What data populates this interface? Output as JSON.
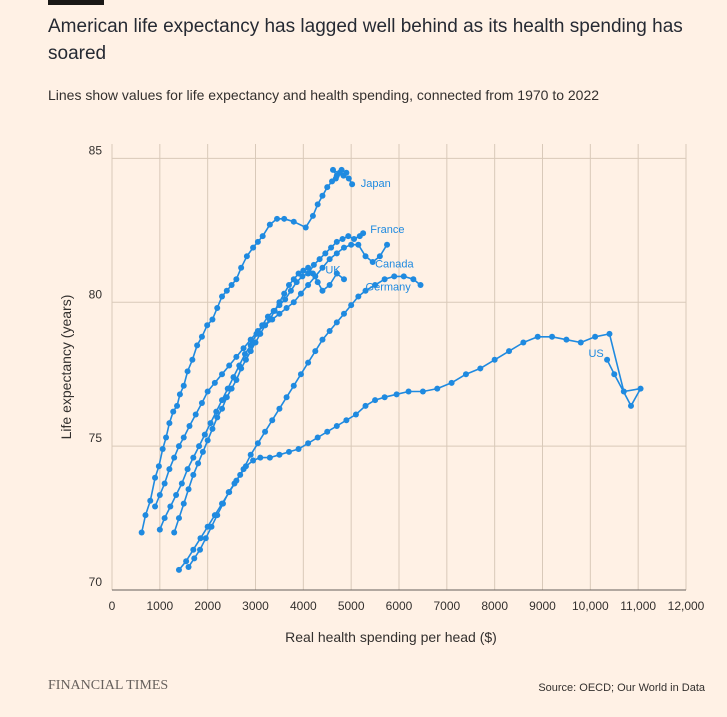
{
  "title": "American life expectancy has lagged well behind as its health spending has soared",
  "subtitle": "Lines show values for life expectancy and health spending, connected from 1970 to 2022",
  "brand": "FINANCIAL TIMES",
  "source": "Source: OECD; Our World in Data",
  "colors": {
    "background": "#fff1e5",
    "series": "#1f8ae0",
    "grid": "#d9c9b9",
    "text": "#33302e"
  },
  "chart_data": {
    "type": "scatter",
    "connected": true,
    "xlabel": "Real health spending per head ($)",
    "ylabel": "Life expectancy (years)",
    "xlim": [
      0,
      12000
    ],
    "ylim": [
      70,
      85.5
    ],
    "xticks": [
      0,
      1000,
      2000,
      3000,
      4000,
      5000,
      6000,
      7000,
      8000,
      9000,
      10000,
      11000,
      12000
    ],
    "xtick_labels": [
      "0",
      "1000",
      "2000",
      "3000",
      "4000",
      "5000",
      "6000",
      "7000",
      "8000",
      "9000",
      "10,000",
      "11,000",
      "12,000"
    ],
    "yticks": [
      70,
      75,
      80,
      85
    ],
    "ytick_labels": [
      "70",
      "75",
      "80",
      "85"
    ],
    "grid": true,
    "series": [
      {
        "name": "Japan",
        "x": [
          620,
          700,
          800,
          900,
          980,
          1060,
          1130,
          1200,
          1280,
          1360,
          1420,
          1500,
          1580,
          1680,
          1780,
          1880,
          1990,
          2100,
          2200,
          2300,
          2400,
          2500,
          2600,
          2700,
          2820,
          2950,
          3050,
          3150,
          3300,
          3450,
          3600,
          3800,
          4050,
          4200,
          4300,
          4400,
          4500,
          4600,
          4680,
          4760,
          4840,
          4900,
          4800,
          4700,
          4620,
          4950,
          5020
        ],
        "y": [
          72.0,
          72.6,
          73.1,
          73.9,
          74.3,
          74.9,
          75.3,
          75.8,
          76.2,
          76.4,
          76.8,
          77.1,
          77.6,
          78.0,
          78.5,
          78.8,
          79.2,
          79.4,
          79.8,
          80.2,
          80.4,
          80.6,
          80.8,
          81.2,
          81.6,
          81.9,
          82.1,
          82.3,
          82.7,
          82.9,
          82.9,
          82.8,
          82.6,
          83.0,
          83.4,
          83.7,
          84.0,
          84.2,
          84.3,
          84.5,
          84.4,
          84.5,
          84.6,
          84.4,
          84.6,
          84.3,
          84.1
        ]
      },
      {
        "name": "France",
        "x": [
          1000,
          1100,
          1220,
          1340,
          1460,
          1580,
          1700,
          1820,
          1940,
          2060,
          2180,
          2300,
          2420,
          2540,
          2660,
          2780,
          2900,
          3020,
          3140,
          3260,
          3380,
          3500,
          3620,
          3740,
          3860,
          3980,
          4100,
          4220,
          4340,
          4460,
          4580,
          4700,
          4820,
          4940,
          5060,
          5180,
          5250
        ],
        "y": [
          72.1,
          72.5,
          72.9,
          73.3,
          73.7,
          74.2,
          74.6,
          75.0,
          75.4,
          75.8,
          76.2,
          76.6,
          77.0,
          77.4,
          77.8,
          78.2,
          78.5,
          78.9,
          79.2,
          79.5,
          79.7,
          79.9,
          80.1,
          80.4,
          80.7,
          80.9,
          81.0,
          81.3,
          81.5,
          81.7,
          81.9,
          82.1,
          82.2,
          82.3,
          82.2,
          82.3,
          82.4
        ]
      },
      {
        "name": "Canada",
        "x": [
          900,
          1000,
          1100,
          1200,
          1300,
          1400,
          1500,
          1620,
          1750,
          1880,
          2000,
          2150,
          2300,
          2450,
          2600,
          2750,
          2900,
          3050,
          3200,
          3350,
          3500,
          3650,
          3800,
          3950,
          4100,
          4250,
          4400,
          4550,
          4700,
          4850,
          5000,
          5150,
          5300,
          5450,
          5600,
          5750
        ],
        "y": [
          72.9,
          73.3,
          73.7,
          74.2,
          74.6,
          75.0,
          75.3,
          75.7,
          76.1,
          76.5,
          76.9,
          77.2,
          77.5,
          77.8,
          78.1,
          78.4,
          78.7,
          79.0,
          79.2,
          79.4,
          79.6,
          79.8,
          80.0,
          80.3,
          80.6,
          80.9,
          81.2,
          81.5,
          81.7,
          81.9,
          82.0,
          82.0,
          81.6,
          81.4,
          81.6,
          82.0
        ]
      },
      {
        "name": "UK",
        "x": [
          1300,
          1400,
          1500,
          1600,
          1700,
          1800,
          1900,
          2000,
          2100,
          2200,
          2300,
          2400,
          2500,
          2600,
          2700,
          2800,
          2900,
          3000,
          3100,
          3200,
          3300,
          3400,
          3500,
          3600,
          3700,
          3800,
          3900,
          4000,
          4100,
          4200,
          4300,
          4400,
          4550,
          4700,
          4850
        ],
        "y": [
          72.0,
          72.5,
          73.0,
          73.5,
          74.0,
          74.4,
          74.8,
          75.2,
          75.6,
          76.0,
          76.3,
          76.7,
          77.0,
          77.3,
          77.7,
          78.0,
          78.3,
          78.6,
          78.9,
          79.2,
          79.4,
          79.7,
          80.0,
          80.3,
          80.6,
          80.8,
          81.0,
          81.1,
          81.2,
          81.0,
          80.7,
          80.4,
          80.6,
          81.0,
          80.8
        ]
      },
      {
        "name": "Germany",
        "x": [
          1400,
          1550,
          1700,
          1850,
          2000,
          2150,
          2300,
          2450,
          2600,
          2750,
          2900,
          3050,
          3200,
          3350,
          3500,
          3650,
          3800,
          3950,
          4100,
          4250,
          4400,
          4550,
          4700,
          4850,
          5000,
          5150,
          5300,
          5500,
          5700,
          5900,
          6100,
          6300,
          6450
        ],
        "y": [
          70.7,
          71.0,
          71.4,
          71.8,
          72.2,
          72.6,
          73.0,
          73.4,
          73.8,
          74.2,
          74.7,
          75.1,
          75.5,
          75.9,
          76.3,
          76.7,
          77.1,
          77.5,
          77.9,
          78.3,
          78.7,
          79.0,
          79.3,
          79.6,
          79.9,
          80.2,
          80.4,
          80.6,
          80.8,
          80.9,
          80.9,
          80.8,
          80.6
        ]
      },
      {
        "name": "US",
        "x": [
          1600,
          1720,
          1840,
          1960,
          2080,
          2200,
          2320,
          2440,
          2560,
          2680,
          2800,
          2950,
          3100,
          3300,
          3500,
          3700,
          3900,
          4100,
          4300,
          4500,
          4700,
          4900,
          5100,
          5300,
          5500,
          5700,
          5950,
          6200,
          6500,
          6800,
          7100,
          7400,
          7700,
          8000,
          8300,
          8600,
          8900,
          9200,
          9500,
          9800,
          10100,
          10400,
          10700,
          11050,
          10850,
          10500,
          10350
        ],
        "y": [
          70.8,
          71.1,
          71.4,
          71.8,
          72.2,
          72.6,
          73.0,
          73.4,
          73.7,
          74.0,
          74.3,
          74.5,
          74.6,
          74.6,
          74.7,
          74.8,
          74.9,
          75.1,
          75.3,
          75.5,
          75.7,
          75.9,
          76.1,
          76.4,
          76.6,
          76.7,
          76.8,
          76.9,
          76.9,
          77.0,
          77.2,
          77.5,
          77.7,
          78.0,
          78.3,
          78.6,
          78.8,
          78.8,
          78.7,
          78.6,
          78.8,
          78.9,
          76.9,
          77.0,
          76.4,
          77.5,
          78.0
        ]
      }
    ],
    "annotations": [
      {
        "text": "Japan",
        "x": 5200,
        "y": 84.0,
        "anchor": "start"
      },
      {
        "text": "France",
        "x": 5400,
        "y": 82.4,
        "anchor": "start"
      },
      {
        "text": "Canada",
        "x": 5500,
        "y": 81.2,
        "anchor": "start"
      },
      {
        "text": "UK",
        "x": 4460,
        "y": 81.0,
        "anchor": "start"
      },
      {
        "text": "Germany",
        "x": 5300,
        "y": 80.4,
        "anchor": "start"
      },
      {
        "text": "US",
        "x": 10280,
        "y": 78.1,
        "anchor": "end"
      }
    ]
  }
}
